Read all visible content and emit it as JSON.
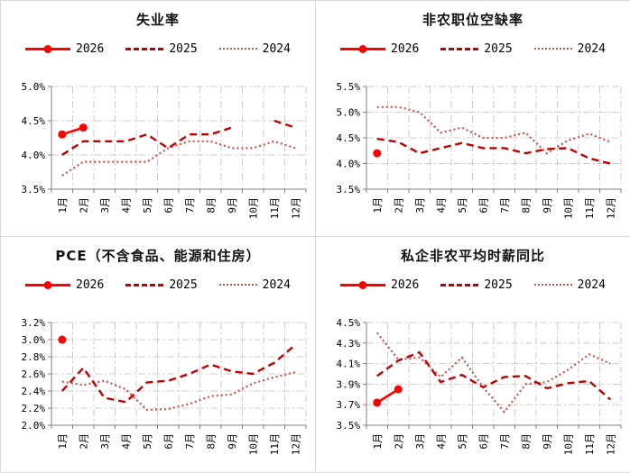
{
  "colors": {
    "series_2026": "#FF0000",
    "series_2025": "#C00000",
    "series_2024": "#D04F4F",
    "gridline": "#CCCCCC",
    "axis": "#808080",
    "text": "#000000",
    "panel_border": "#D9D9D9",
    "background": "#FFFFFF"
  },
  "chart_data": [
    {
      "type": "line",
      "title": "失业率",
      "legend_position": "top",
      "grid": true,
      "x_label_rotation": -90,
      "ylim": [
        3.5,
        5.0
      ],
      "ytick_labels": [
        "5.0%",
        "4.5%",
        "4.0%",
        "3.5%"
      ],
      "categories": [
        "1月",
        "2月",
        "3月",
        "4月",
        "5月",
        "6月",
        "7月",
        "8月",
        "9月",
        "10月",
        "11月",
        "12月"
      ],
      "series": [
        {
          "name": "2026",
          "line": "solid",
          "marker": true,
          "values": [
            4.3,
            4.4
          ]
        },
        {
          "name": "2025",
          "line": "dashed",
          "marker": false,
          "values": [
            4.0,
            4.2,
            4.2,
            4.2,
            4.3,
            4.1,
            4.3,
            4.3,
            4.4,
            null,
            4.5,
            4.4
          ]
        },
        {
          "name": "2024",
          "line": "dotted",
          "marker": false,
          "values": [
            3.7,
            3.9,
            3.9,
            3.9,
            3.9,
            4.1,
            4.2,
            4.2,
            4.1,
            4.1,
            4.2,
            4.1
          ]
        }
      ]
    },
    {
      "type": "line",
      "title": "非农职位空缺率",
      "legend_position": "top",
      "grid": true,
      "x_label_rotation": -90,
      "ylim": [
        3.5,
        5.5
      ],
      "ytick_labels": [
        "5.5%",
        "5.0%",
        "4.5%",
        "4.0%",
        "3.5%"
      ],
      "categories": [
        "1月",
        "2月",
        "3月",
        "4月",
        "5月",
        "6月",
        "7月",
        "8月",
        "9月",
        "10月",
        "11月",
        "12月"
      ],
      "series": [
        {
          "name": "2026",
          "line": "solid",
          "marker": true,
          "values": [
            4.2
          ]
        },
        {
          "name": "2025",
          "line": "dashed",
          "marker": false,
          "values": [
            4.48,
            4.42,
            4.2,
            4.3,
            4.4,
            4.3,
            4.3,
            4.2,
            4.28,
            4.3,
            4.1,
            4.0
          ]
        },
        {
          "name": "2024",
          "line": "dotted",
          "marker": false,
          "values": [
            5.1,
            5.1,
            5.0,
            4.6,
            4.7,
            4.5,
            4.5,
            4.6,
            4.2,
            4.45,
            4.58,
            4.42
          ]
        }
      ]
    },
    {
      "type": "line",
      "title": "PCE（不含食品、能源和住房）",
      "legend_position": "top",
      "grid": true,
      "x_label_rotation": -90,
      "ylim": [
        2.0,
        3.2
      ],
      "ytick_labels": [
        "3.2%",
        "3.0%",
        "2.8%",
        "2.6%",
        "2.4%",
        "2.2%",
        "2.0%"
      ],
      "categories": [
        "1月",
        "2月",
        "3月",
        "4月",
        "5月",
        "6月",
        "7月",
        "8月",
        "9月",
        "10月",
        "11月",
        "12月"
      ],
      "series": [
        {
          "name": "2026",
          "line": "solid",
          "marker": true,
          "values": [
            3.0
          ]
        },
        {
          "name": "2025",
          "line": "dashed",
          "marker": false,
          "values": [
            2.4,
            2.67,
            2.32,
            2.27,
            2.5,
            2.52,
            2.6,
            2.71,
            2.63,
            2.6,
            2.73,
            2.94
          ]
        },
        {
          "name": "2024",
          "line": "dotted",
          "marker": false,
          "values": [
            2.51,
            2.47,
            2.52,
            2.42,
            2.18,
            2.19,
            2.25,
            2.34,
            2.36,
            2.49,
            2.56,
            2.62
          ]
        }
      ]
    },
    {
      "type": "line",
      "title": "私企非农平均时薪同比",
      "legend_position": "top",
      "grid": true,
      "x_label_rotation": -90,
      "ylim": [
        3.5,
        4.5
      ],
      "ytick_labels": [
        "4.5%",
        "4.3%",
        "4.1%",
        "3.9%",
        "3.7%",
        "3.5%"
      ],
      "categories": [
        "1月",
        "2月",
        "3月",
        "4月",
        "5月",
        "6月",
        "7月",
        "8月",
        "9月",
        "10月",
        "11月",
        "12月"
      ],
      "series": [
        {
          "name": "2026",
          "line": "solid",
          "marker": true,
          "values": [
            3.72,
            3.85
          ]
        },
        {
          "name": "2025",
          "line": "dashed",
          "marker": false,
          "values": [
            3.98,
            4.13,
            4.21,
            3.92,
            3.99,
            3.87,
            3.97,
            3.98,
            3.86,
            3.91,
            3.93,
            3.75
          ]
        },
        {
          "name": "2024",
          "line": "dotted",
          "marker": false,
          "values": [
            4.4,
            4.14,
            4.16,
            3.97,
            4.16,
            3.87,
            3.63,
            3.9,
            3.92,
            4.04,
            4.19,
            4.1
          ]
        }
      ]
    }
  ]
}
